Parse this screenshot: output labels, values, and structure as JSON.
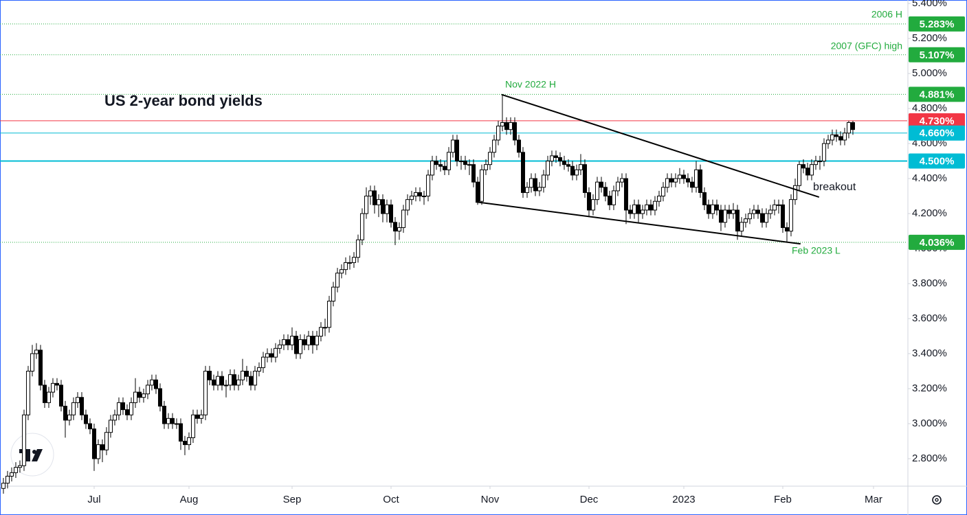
{
  "chart_data": {
    "type": "candlestick",
    "title": "US 2-year bond yields",
    "up_color": "#ffffff",
    "down_color": "#000000",
    "ylim": [
      2.643,
      5.42
    ],
    "yticks": [
      {
        "value": 5.4,
        "label": "5.400%"
      },
      {
        "value": 5.2,
        "label": "5.200%"
      },
      {
        "value": 5.0,
        "label": "5.000%"
      },
      {
        "value": 4.8,
        "label": "4.800%"
      },
      {
        "value": 4.6,
        "label": "4.600%"
      },
      {
        "value": 4.4,
        "label": "4.400%"
      },
      {
        "value": 4.2,
        "label": "4.200%"
      },
      {
        "value": 4.0,
        "label": "4.000%"
      },
      {
        "value": 3.8,
        "label": "3.800%"
      },
      {
        "value": 3.6,
        "label": "3.600%"
      },
      {
        "value": 3.4,
        "label": "3.400%"
      },
      {
        "value": 3.2,
        "label": "3.200%"
      },
      {
        "value": 3.0,
        "label": "3.000%"
      },
      {
        "value": 2.8,
        "label": "2.800%"
      }
    ],
    "xlim": [
      -0.83,
      219.17
    ],
    "xticks": [
      {
        "value": 22,
        "label": "Jul"
      },
      {
        "value": 45,
        "label": "Aug"
      },
      {
        "value": 70,
        "label": "Sep"
      },
      {
        "value": 94,
        "label": "Oct"
      },
      {
        "value": 118,
        "label": "Nov"
      },
      {
        "value": 142,
        "label": "Dec"
      },
      {
        "value": 165,
        "label": "2023"
      },
      {
        "value": 189,
        "label": "Feb"
      },
      {
        "value": 211,
        "label": "Mar"
      }
    ],
    "open": [
      2.63,
      2.66,
      2.7,
      2.72,
      2.75,
      2.76,
      3.05,
      3.3,
      3.4,
      3.42,
      3.22,
      3.12,
      3.18,
      3.23,
      3.22,
      3.1,
      3.02,
      3.05,
      3.12,
      3.15,
      3.05,
      3.0,
      2.97,
      2.8,
      2.88,
      2.85,
      2.95,
      3.02,
      3.05,
      3.12,
      3.08,
      3.05,
      3.12,
      3.18,
      3.15,
      3.17,
      3.22,
      3.25,
      3.2,
      3.1,
      3.0,
      3.03,
      3.0,
      3.0,
      2.9,
      2.88,
      2.92,
      3.05,
      3.03,
      3.05,
      3.3,
      3.25,
      3.22,
      3.27,
      3.22,
      3.22,
      3.28,
      3.22,
      3.25,
      3.3,
      3.27,
      3.22,
      3.3,
      3.32,
      3.38,
      3.4,
      3.38,
      3.43,
      3.45,
      3.48,
      3.45,
      3.5,
      3.4,
      3.48,
      3.45,
      3.5,
      3.45,
      3.5,
      3.55,
      3.55,
      3.7,
      3.78,
      3.86,
      3.88,
      3.92,
      3.92,
      3.95,
      4.05,
      4.2,
      4.3,
      4.33,
      4.25,
      4.28,
      4.2,
      4.25,
      4.15,
      4.1,
      4.12,
      4.22,
      4.28,
      4.3,
      4.32,
      4.3,
      4.3,
      4.42,
      4.5,
      4.48,
      4.47,
      4.45,
      4.55,
      4.62,
      4.5,
      4.5,
      4.48,
      4.48,
      4.38,
      4.27,
      4.45,
      4.48,
      4.55,
      4.62,
      4.7,
      4.72,
      4.68,
      4.72,
      4.62,
      4.55,
      4.32,
      4.35,
      4.4,
      4.33,
      4.35,
      4.42,
      4.5,
      4.53,
      4.52,
      4.5,
      4.48,
      4.47,
      4.42,
      4.45,
      4.48,
      4.32,
      4.22,
      4.28,
      4.38,
      4.35,
      4.3,
      4.25,
      4.33,
      4.38,
      4.4,
      4.22,
      4.2,
      4.25,
      4.2,
      4.22,
      4.25,
      4.22,
      4.27,
      4.3,
      4.35,
      4.4,
      4.38,
      4.4,
      4.42,
      4.4,
      4.38,
      4.35,
      4.45,
      4.32,
      4.25,
      4.2,
      4.25,
      4.22,
      4.15,
      4.22,
      4.2,
      4.22,
      4.1,
      4.15,
      4.17,
      4.2,
      4.22,
      4.2,
      4.15,
      4.2,
      4.22,
      4.25,
      4.25,
      4.12,
      4.1,
      4.28,
      4.36,
      4.48,
      4.46,
      4.42,
      4.48,
      4.5,
      4.5,
      4.6,
      4.62,
      4.65,
      4.64,
      4.62,
      4.66,
      4.72
    ],
    "high": [
      2.69,
      2.73,
      2.75,
      2.78,
      2.79,
      3.08,
      3.33,
      3.45,
      3.46,
      3.45,
      3.25,
      3.21,
      3.26,
      3.26,
      3.25,
      3.13,
      3.08,
      3.15,
      3.18,
      3.18,
      3.08,
      3.03,
      3.0,
      2.91,
      2.91,
      2.98,
      3.05,
      3.08,
      3.15,
      3.15,
      3.11,
      3.15,
      3.26,
      3.21,
      3.2,
      3.25,
      3.28,
      3.28,
      3.23,
      3.13,
      3.06,
      3.06,
      3.03,
      3.03,
      2.93,
      2.95,
      3.08,
      3.08,
      3.08,
      3.33,
      3.33,
      3.28,
      3.3,
      3.3,
      3.25,
      3.31,
      3.31,
      3.28,
      3.37,
      3.33,
      3.3,
      3.33,
      3.35,
      3.41,
      3.43,
      3.43,
      3.46,
      3.48,
      3.51,
      3.51,
      3.55,
      3.53,
      3.51,
      3.51,
      3.53,
      3.53,
      3.53,
      3.58,
      3.6,
      3.73,
      3.81,
      3.89,
      3.91,
      3.95,
      3.96,
      3.98,
      4.08,
      4.23,
      4.35,
      4.36,
      4.36,
      4.31,
      4.31,
      4.28,
      4.28,
      4.18,
      4.15,
      4.25,
      4.31,
      4.33,
      4.35,
      4.35,
      4.33,
      4.45,
      4.53,
      4.53,
      4.51,
      4.5,
      4.58,
      4.65,
      4.65,
      4.53,
      4.53,
      4.51,
      4.51,
      4.41,
      4.48,
      4.51,
      4.58,
      4.65,
      4.73,
      4.88,
      4.75,
      4.75,
      4.75,
      4.65,
      4.58,
      4.38,
      4.43,
      4.43,
      4.38,
      4.45,
      4.53,
      4.56,
      4.56,
      4.55,
      4.53,
      4.51,
      4.5,
      4.48,
      4.54,
      4.51,
      4.35,
      4.31,
      4.41,
      4.41,
      4.38,
      4.33,
      4.36,
      4.41,
      4.43,
      4.43,
      4.25,
      4.28,
      4.28,
      4.25,
      4.28,
      4.28,
      4.3,
      4.33,
      4.38,
      4.43,
      4.43,
      4.43,
      4.46,
      4.45,
      4.43,
      4.41,
      4.5,
      4.48,
      4.35,
      4.28,
      4.28,
      4.28,
      4.25,
      4.25,
      4.25,
      4.26,
      4.25,
      4.18,
      4.2,
      4.23,
      4.25,
      4.25,
      4.23,
      4.23,
      4.25,
      4.28,
      4.28,
      4.28,
      4.15,
      4.31,
      4.4,
      4.5,
      4.51,
      4.49,
      4.51,
      4.53,
      4.53,
      4.63,
      4.65,
      4.68,
      4.68,
      4.67,
      4.69,
      4.73,
      4.73
    ],
    "low": [
      2.6,
      2.63,
      2.67,
      2.69,
      2.72,
      2.73,
      3.02,
      3.27,
      3.37,
      3.19,
      3.09,
      3.09,
      3.15,
      3.19,
      3.07,
      2.92,
      2.99,
      3.02,
      3.09,
      3.02,
      2.97,
      2.94,
      2.73,
      2.77,
      2.78,
      2.82,
      2.92,
      2.99,
      3.02,
      3.05,
      3.02,
      3.02,
      3.09,
      3.12,
      3.12,
      3.14,
      3.19,
      3.17,
      3.07,
      2.97,
      2.97,
      2.97,
      2.97,
      2.85,
      2.82,
      2.85,
      2.89,
      3.0,
      3.0,
      3.02,
      3.22,
      3.19,
      3.19,
      3.19,
      3.15,
      3.19,
      3.19,
      3.19,
      3.22,
      3.24,
      3.19,
      3.19,
      3.27,
      3.29,
      3.35,
      3.35,
      3.35,
      3.4,
      3.42,
      3.42,
      3.42,
      3.37,
      3.37,
      3.42,
      3.42,
      3.4,
      3.42,
      3.47,
      3.5,
      3.52,
      3.67,
      3.75,
      3.83,
      3.85,
      3.88,
      3.89,
      3.92,
      4.02,
      4.17,
      4.25,
      4.2,
      4.18,
      4.15,
      4.15,
      4.12,
      4.02,
      4.05,
      4.09,
      4.19,
      4.25,
      4.27,
      4.27,
      4.25,
      4.27,
      4.39,
      4.45,
      4.44,
      4.42,
      4.42,
      4.52,
      4.47,
      4.45,
      4.45,
      4.42,
      4.35,
      4.25,
      4.25,
      4.42,
      4.45,
      4.52,
      4.59,
      4.67,
      4.65,
      4.65,
      4.59,
      4.52,
      4.29,
      4.29,
      4.32,
      4.3,
      4.3,
      4.32,
      4.39,
      4.47,
      4.49,
      4.47,
      4.45,
      4.44,
      4.39,
      4.39,
      4.42,
      4.29,
      4.18,
      4.19,
      4.25,
      4.32,
      4.27,
      4.22,
      4.22,
      4.3,
      4.35,
      4.14,
      4.17,
      4.17,
      4.15,
      4.17,
      4.19,
      4.19,
      4.19,
      4.24,
      4.27,
      4.32,
      4.35,
      4.35,
      4.37,
      4.37,
      4.35,
      4.32,
      4.32,
      4.29,
      4.22,
      4.17,
      4.17,
      4.19,
      4.1,
      4.12,
      4.17,
      4.17,
      4.05,
      4.07,
      4.12,
      4.14,
      4.17,
      4.17,
      4.12,
      4.12,
      4.17,
      4.19,
      4.2,
      4.09,
      4.04,
      4.07,
      4.25,
      4.33,
      4.43,
      4.39,
      4.39,
      4.45,
      4.45,
      4.47,
      4.57,
      4.59,
      4.61,
      4.59,
      4.59,
      4.63,
      4.65
    ],
    "close": [
      2.66,
      2.7,
      2.72,
      2.75,
      2.76,
      3.05,
      3.3,
      3.4,
      3.42,
      3.22,
      3.12,
      3.18,
      3.23,
      3.22,
      3.1,
      3.02,
      3.05,
      3.12,
      3.15,
      3.05,
      3.0,
      2.97,
      2.8,
      2.88,
      2.85,
      2.95,
      3.02,
      3.05,
      3.12,
      3.08,
      3.05,
      3.12,
      3.18,
      3.15,
      3.17,
      3.22,
      3.25,
      3.2,
      3.1,
      3.0,
      3.03,
      3.0,
      3.0,
      2.9,
      2.88,
      2.92,
      3.05,
      3.03,
      3.05,
      3.3,
      3.25,
      3.22,
      3.27,
      3.22,
      3.22,
      3.28,
      3.22,
      3.25,
      3.3,
      3.27,
      3.22,
      3.3,
      3.32,
      3.38,
      3.4,
      3.38,
      3.43,
      3.45,
      3.48,
      3.45,
      3.5,
      3.4,
      3.48,
      3.45,
      3.5,
      3.45,
      3.5,
      3.55,
      3.55,
      3.7,
      3.78,
      3.86,
      3.88,
      3.92,
      3.92,
      3.95,
      4.05,
      4.2,
      4.3,
      4.33,
      4.25,
      4.28,
      4.2,
      4.25,
      4.15,
      4.1,
      4.12,
      4.22,
      4.28,
      4.3,
      4.32,
      4.3,
      4.3,
      4.42,
      4.5,
      4.48,
      4.47,
      4.45,
      4.55,
      4.62,
      4.5,
      4.5,
      4.48,
      4.48,
      4.38,
      4.27,
      4.45,
      4.48,
      4.55,
      4.62,
      4.7,
      4.72,
      4.68,
      4.72,
      4.62,
      4.55,
      4.32,
      4.35,
      4.4,
      4.33,
      4.35,
      4.42,
      4.5,
      4.53,
      4.52,
      4.5,
      4.48,
      4.47,
      4.42,
      4.45,
      4.48,
      4.32,
      4.22,
      4.28,
      4.38,
      4.35,
      4.3,
      4.25,
      4.33,
      4.38,
      4.4,
      4.22,
      4.2,
      4.25,
      4.2,
      4.22,
      4.25,
      4.22,
      4.27,
      4.3,
      4.35,
      4.4,
      4.38,
      4.4,
      4.42,
      4.4,
      4.38,
      4.35,
      4.45,
      4.32,
      4.25,
      4.2,
      4.25,
      4.22,
      4.15,
      4.22,
      4.2,
      4.22,
      4.1,
      4.15,
      4.17,
      4.2,
      4.22,
      4.2,
      4.15,
      4.2,
      4.22,
      4.25,
      4.25,
      4.12,
      4.1,
      4.28,
      4.36,
      4.48,
      4.46,
      4.42,
      4.48,
      4.5,
      4.5,
      4.6,
      4.62,
      4.65,
      4.64,
      4.62,
      4.66,
      4.72,
      4.68
    ],
    "levels": [
      {
        "value": 5.283,
        "label": "5.283%",
        "color": "#22ab3e",
        "style": "dotted"
      },
      {
        "value": 5.107,
        "label": "5.107%",
        "color": "#22ab3e",
        "style": "dotted"
      },
      {
        "value": 4.881,
        "label": "4.881%",
        "color": "#22ab3e",
        "style": "dotted"
      },
      {
        "value": 4.73,
        "label": "4.730%",
        "color": "#f23645",
        "style": "solid"
      },
      {
        "value": 4.66,
        "label": "4.660%",
        "color": "#00bcd4",
        "style": "solid"
      },
      {
        "value": 4.5,
        "label": "4.500%",
        "color": "#00bcd4",
        "style": "solid"
      },
      {
        "value": 4.036,
        "label": "4.036%",
        "color": "#22ab3e",
        "style": "dotted"
      }
    ],
    "trendlines": [
      {
        "x": [
          120.8,
          197.8
        ],
        "y": [
          4.88,
          4.294
        ]
      },
      {
        "x": [
          114.5,
          193.3
        ],
        "y": [
          4.267,
          4.027
        ]
      }
    ],
    "annotations": [
      {
        "text": "2006 H",
        "color": "#22ab3e"
      },
      {
        "text": "2007 (GFC) high",
        "color": "#22ab3e"
      },
      {
        "text": "Nov 2022 H",
        "color": "#22ab3e"
      },
      {
        "text": "Feb 2023 L",
        "color": "#22ab3e"
      },
      {
        "text": "breakout",
        "color": "#131722"
      }
    ]
  }
}
